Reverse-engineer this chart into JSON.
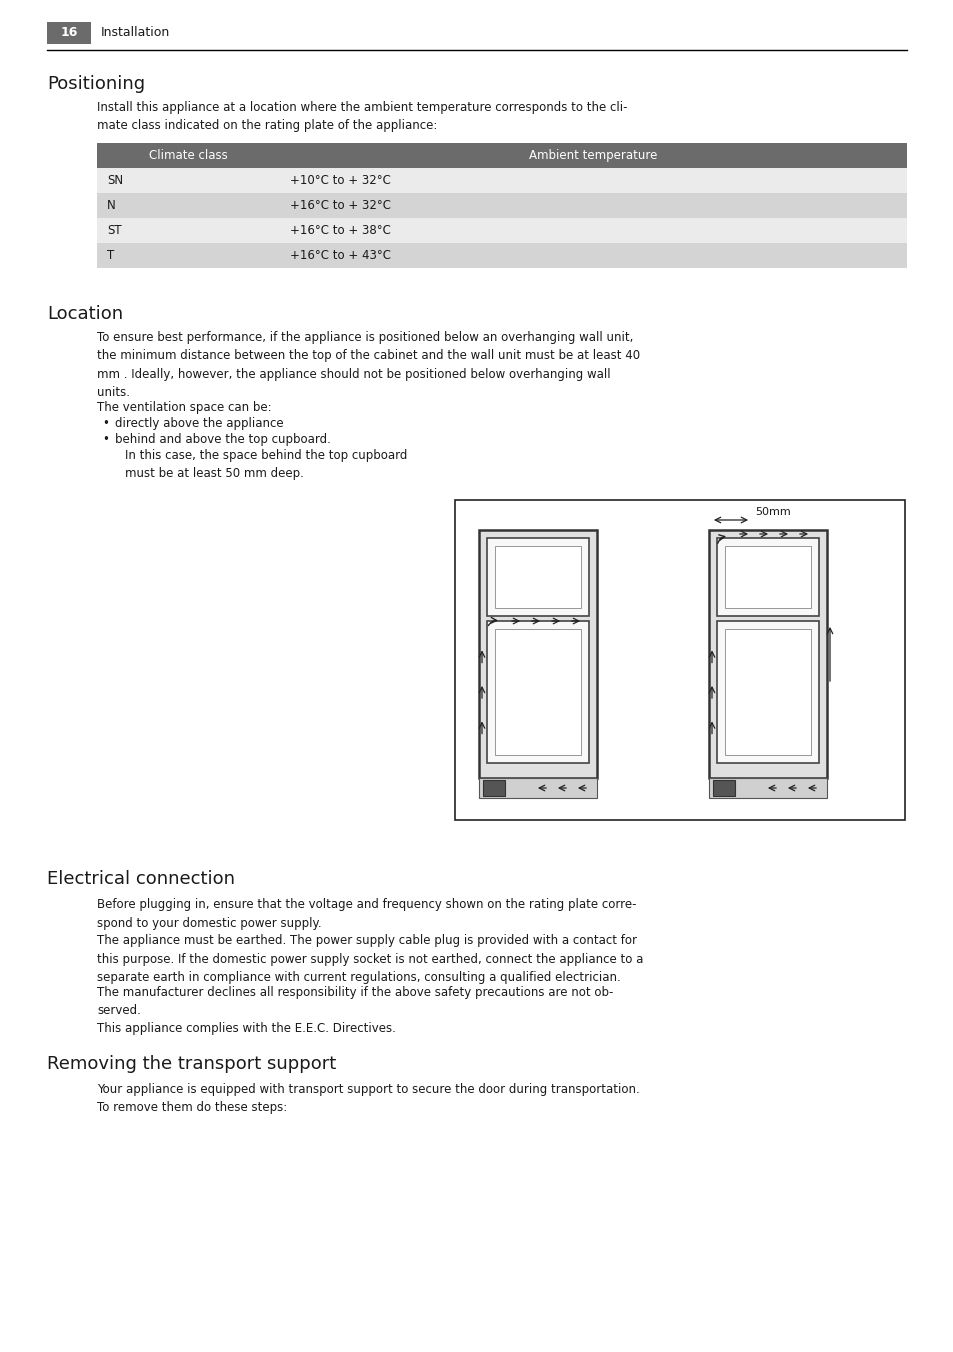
{
  "page_number": "16",
  "chapter": "Installation",
  "background_color": "#ffffff",
  "header_box_color": "#6b6b6b",
  "header_text_color": "#ffffff",
  "section1_title": "Positioning",
  "section1_intro": "Install this appliance at a location where the ambient temperature corresponds to the cli-\nmate class indicated on the rating plate of the appliance:",
  "table_header_bg": "#6b6b6b",
  "table_header_text_color": "#ffffff",
  "table_row_bg_odd": "#ebebeb",
  "table_row_bg_even": "#d4d4d4",
  "table_col1_header": "Climate class",
  "table_col2_header": "Ambient temperature",
  "table_rows": [
    [
      "SN",
      "+10°C to + 32°C"
    ],
    [
      "N",
      "+16°C to + 32°C"
    ],
    [
      "ST",
      "+16°C to + 38°C"
    ],
    [
      "T",
      "+16°C to + 43°C"
    ]
  ],
  "section2_title": "Location",
  "section2_para1": "To ensure best performance, if the appliance is positioned below an overhanging wall unit,\nthe minimum distance between the top of the cabinet and the wall unit must be at least 40\nmm . Ideally, however, the appliance should not be positioned below overhanging wall\nunits.",
  "section2_ventilation": "The ventilation space can be:",
  "section2_bullets": [
    "directly above the appliance",
    "behind and above the top cupboard."
  ],
  "section2_sub_note": "In this case, the space behind the top cupboard\nmust be at least 50 mm deep.",
  "section3_title": "Electrical connection",
  "section3_para1": "Before plugging in, ensure that the voltage and frequency shown on the rating plate corre-\nspond to your domestic power supply.",
  "section3_para2": "The appliance must be earthed. The power supply cable plug is provided with a contact for\nthis purpose. If the domestic power supply socket is not earthed, connect the appliance to a\nseparate earth in compliance with current regulations, consulting a qualified electrician.",
  "section3_para3": "The manufacturer declines all responsibility if the above safety precautions are not ob-\nserved.",
  "section3_para4": "This appliance complies with the E.E.C. Directives.",
  "section4_title": "Removing the transport support",
  "section4_para1": "Your appliance is equipped with transport support to secure the door during transportation.\nTo remove them do these steps:",
  "diagram_label": "50mm",
  "text_color": "#1a1a1a",
  "body_fontsize": 8.5,
  "section_title_fontsize": 13,
  "table_fontsize": 8.5
}
